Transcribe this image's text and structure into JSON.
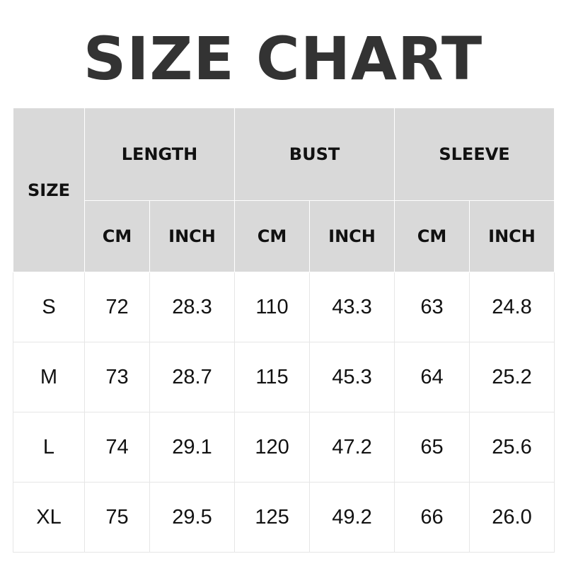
{
  "title": "SIZE CHART",
  "header": {
    "size": "SIZE",
    "groups": [
      "LENGTH",
      "BUST",
      "SLEEVE"
    ],
    "units": [
      "CM",
      "INCH",
      "CM",
      "INCH",
      "CM",
      "INCH"
    ]
  },
  "rows": [
    [
      "S",
      "72",
      "28.3",
      "110",
      "43.3",
      "63",
      "24.8"
    ],
    [
      "M",
      "73",
      "28.7",
      "115",
      "45.3",
      "64",
      "25.2"
    ],
    [
      "L",
      "74",
      "29.1",
      "120",
      "47.2",
      "65",
      "25.6"
    ],
    [
      "XL",
      "75",
      "29.5",
      "125",
      "49.2",
      "66",
      "26.0"
    ]
  ]
}
